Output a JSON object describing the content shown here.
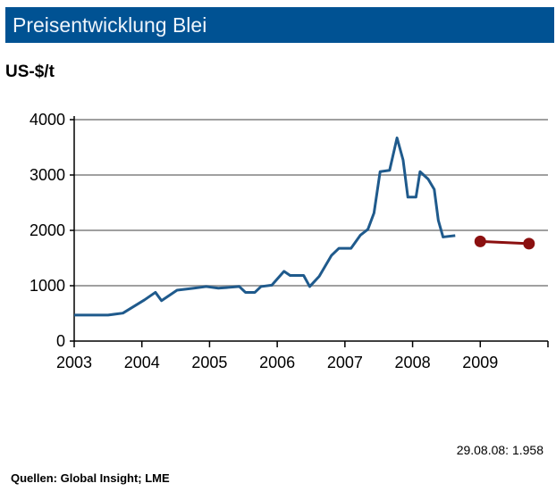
{
  "header": {
    "title": "Preisentwicklung Blei"
  },
  "footer": {
    "latest": "29.08.08: 1.958",
    "source": "Quellen: Global Insight; LME"
  },
  "chart_data": {
    "type": "line",
    "title": "Preisentwicklung Blei",
    "ylabel": "US-$/t",
    "xlabel": "",
    "xlim": [
      2003,
      2010
    ],
    "ylim": [
      0,
      4000
    ],
    "x_ticks": [
      "2003",
      "2004",
      "2005",
      "2006",
      "2007",
      "2008",
      "2009"
    ],
    "y_ticks": [
      "0",
      "1000",
      "2000",
      "3000",
      "4000"
    ],
    "grid": true,
    "colors": {
      "history": "#1f5a8c",
      "forecast": "#8b1010",
      "titlebar": "#005293"
    },
    "series": [
      {
        "points": [
          [
            2003.0,
            470
          ],
          [
            2003.5,
            470
          ],
          [
            2003.72,
            505
          ],
          [
            2004.04,
            745
          ],
          [
            2004.2,
            880
          ],
          [
            2004.29,
            730
          ],
          [
            2004.52,
            920
          ],
          [
            2004.77,
            955
          ],
          [
            2004.95,
            985
          ],
          [
            2005.13,
            955
          ],
          [
            2005.44,
            985
          ],
          [
            2005.53,
            880
          ],
          [
            2005.67,
            880
          ],
          [
            2005.76,
            985
          ],
          [
            2005.92,
            1010
          ],
          [
            2006.1,
            1260
          ],
          [
            2006.19,
            1185
          ],
          [
            2006.39,
            1185
          ],
          [
            2006.48,
            985
          ],
          [
            2006.62,
            1170
          ],
          [
            2006.8,
            1545
          ],
          [
            2006.91,
            1675
          ],
          [
            2007.09,
            1675
          ],
          [
            2007.23,
            1915
          ],
          [
            2007.34,
            2020
          ],
          [
            2007.43,
            2315
          ],
          [
            2007.52,
            3060
          ],
          [
            2007.66,
            3085
          ],
          [
            2007.77,
            3670
          ],
          [
            2007.86,
            3270
          ],
          [
            2007.93,
            2600
          ],
          [
            2008.05,
            2600
          ],
          [
            2008.11,
            3060
          ],
          [
            2008.23,
            2925
          ],
          [
            2008.32,
            2740
          ],
          [
            2008.38,
            2180
          ],
          [
            2008.45,
            1880
          ],
          [
            2008.63,
            1905
          ]
        ]
      },
      {
        "points": [
          [
            2009.0,
            1800
          ],
          [
            2009.72,
            1760
          ]
        ],
        "markers": true
      }
    ]
  }
}
